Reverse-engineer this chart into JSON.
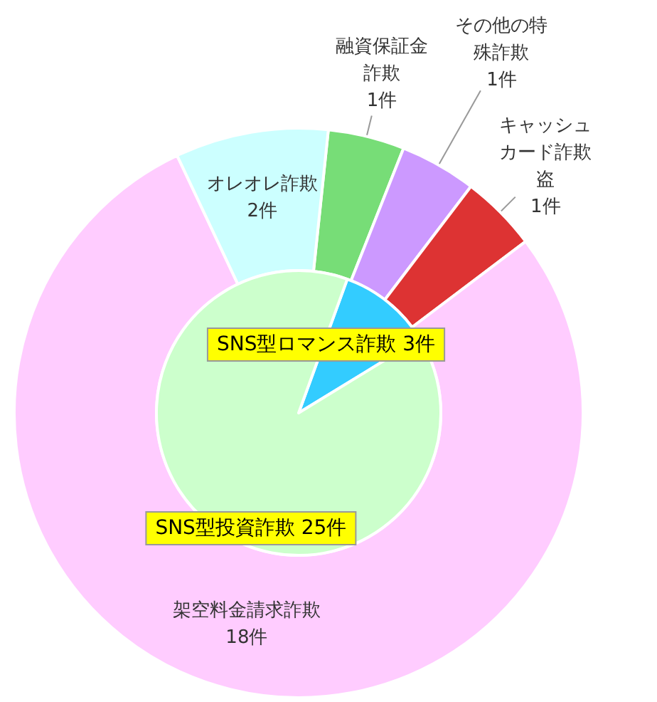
{
  "chart_data": [
    {
      "type": "donut",
      "categories": [
        "融資保証金詐欺",
        "その他の特殊詐欺",
        "キャッシュカード詐欺盗",
        "架空料金請求詐欺",
        "オレオレ詐欺"
      ],
      "values": [
        1,
        1,
        1,
        18,
        2
      ],
      "colors": [
        "#77dd77",
        "#cc99ff",
        "#dd3333",
        "#ffccff",
        "#ccffff"
      ],
      "value_labels": [
        "1件",
        "1件",
        "1件",
        "18件",
        "2件"
      ]
    },
    {
      "type": "pie",
      "categories": [
        "SNS型ロマンス詐欺",
        "SNS型投資詐欺"
      ],
      "values": [
        3,
        25
      ],
      "colors": [
        "#33ccff",
        "#ccffcc"
      ],
      "value_labels": [
        "3件",
        "25件"
      ]
    }
  ]
}
